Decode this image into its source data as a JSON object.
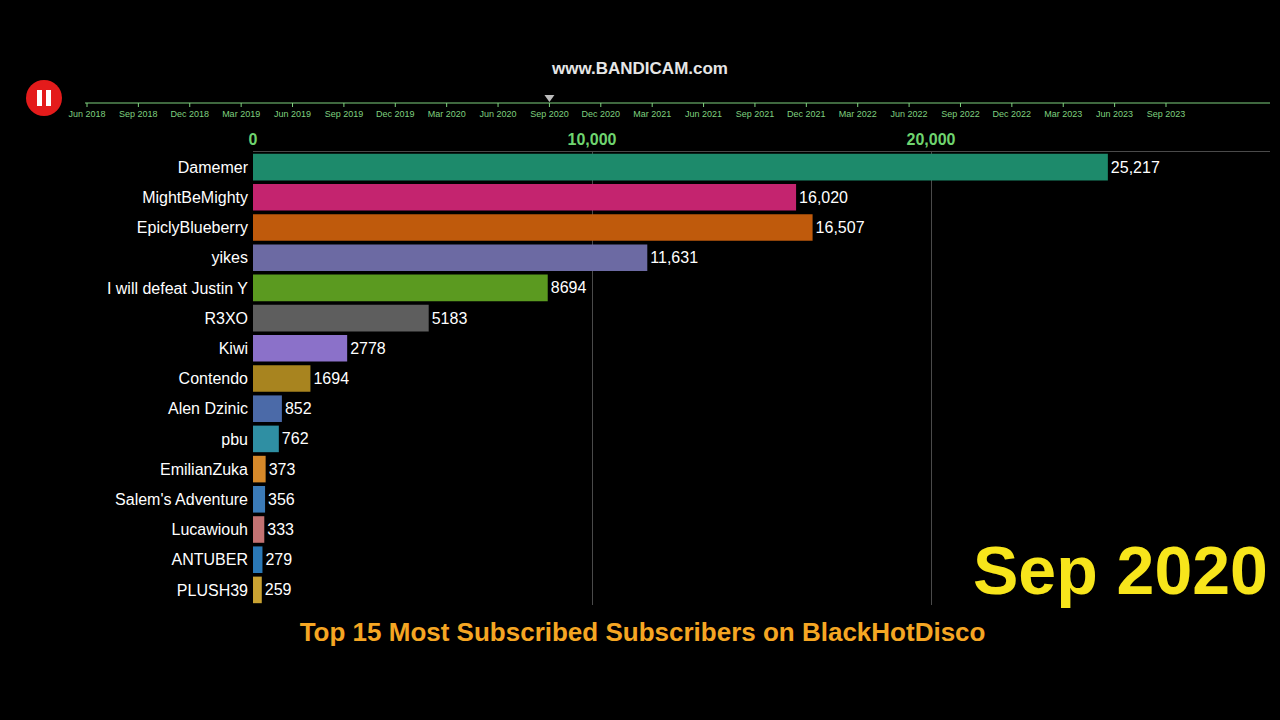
{
  "chart_data": {
    "type": "bar",
    "title": "Top 15 Most Subscribed Subscribers on BlackHotDisco",
    "date": "Sep 2020",
    "watermark": "www.BANDICAM.com",
    "timeline": [
      "Jun 2018",
      "Sep 2018",
      "Dec 2018",
      "Mar 2019",
      "Jun 2019",
      "Sep 2019",
      "Dec 2019",
      "Mar 2020",
      "Jun 2020",
      "Sep 2020",
      "Dec 2020",
      "Mar 2021",
      "Jun 2021",
      "Sep 2021",
      "Dec 2021",
      "Mar 2022",
      "Jun 2022",
      "Sep 2022",
      "Dec 2022",
      "Mar 2023",
      "Jun 2023",
      "Sep 2023"
    ],
    "orientation": "horizontal",
    "categories": [
      "Damemer",
      "MightBeMighty",
      "EpiclyBlueberry",
      "yikes",
      "I will defeat Justin Y",
      "R3XO",
      "Kiwi",
      "Contendo",
      "Alen Dzinic",
      "pbu",
      "EmilianZuka",
      "Salem's Adventure",
      "Lucawiouh",
      "ANTUBER",
      "PLUSH39"
    ],
    "values": [
      25217,
      16020,
      16507,
      11631,
      8694,
      5183,
      2778,
      1694,
      852,
      762,
      373,
      356,
      333,
      279,
      259
    ],
    "value_labels": [
      "25,217",
      "16,020",
      "16,507",
      "11,631",
      "8694",
      "5183",
      "2778",
      "1694",
      "852",
      "762",
      "373",
      "356",
      "333",
      "279",
      "259"
    ],
    "colors": [
      "#1d8a6b",
      "#c4246f",
      "#bf5a0c",
      "#6c6aa3",
      "#5b9a20",
      "#5e5e5e",
      "#8b71c9",
      "#a8841f",
      "#4b6aa8",
      "#2f8fa3",
      "#d4882a",
      "#3b7bb8",
      "#c27272",
      "#2a78b6",
      "#c9a232"
    ],
    "xlim": [
      0,
      30000
    ],
    "xticks": [
      0,
      {
        "value": 10000,
        "label": "10,000"
      },
      {
        "value": 20000,
        "label": "20,000"
      }
    ],
    "data_labels": true,
    "grid": true
  }
}
